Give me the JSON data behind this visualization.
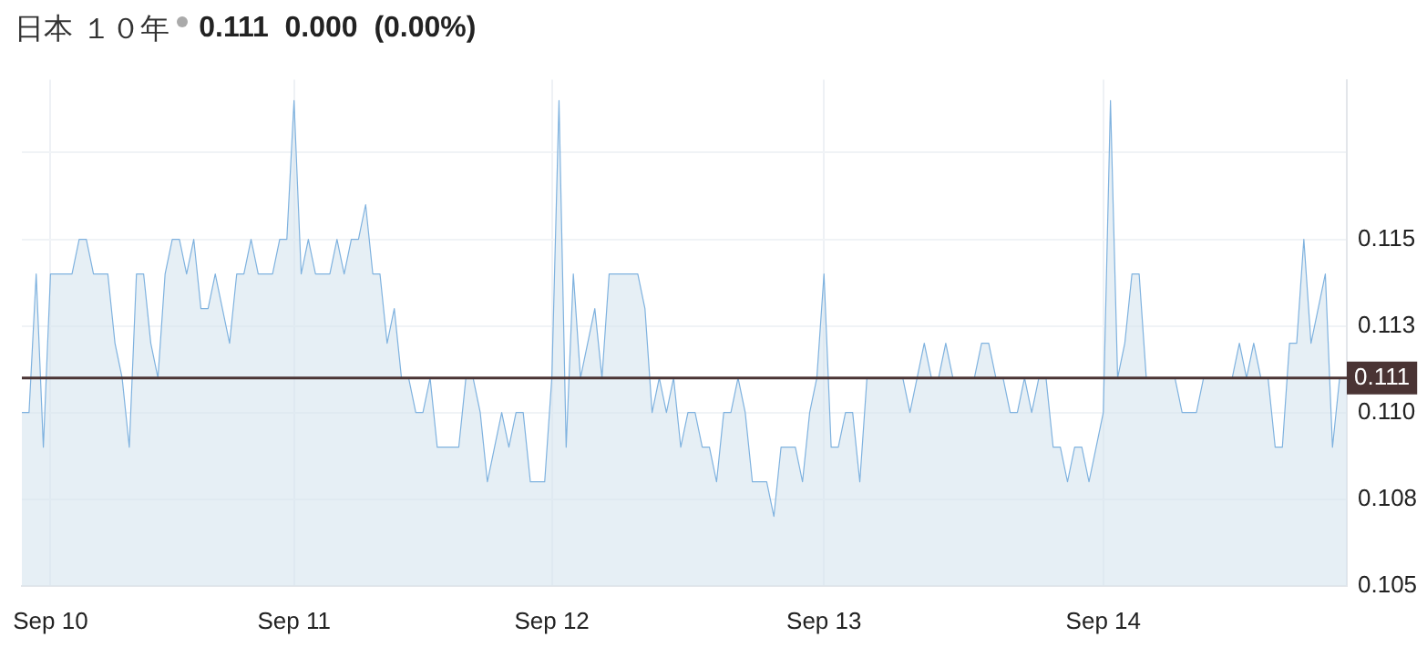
{
  "chart_data": {
    "type": "area",
    "title": "日本 １０年",
    "subtitle": "0.111  0.000  (0.00%)",
    "categories": [
      null,
      null,
      null,
      null,
      "Sep 10",
      null,
      null,
      null,
      null,
      null,
      null,
      null,
      null,
      null,
      null,
      null,
      null,
      null,
      null,
      null,
      null,
      null,
      null,
      null,
      null,
      null,
      null,
      null,
      null,
      null,
      null,
      null,
      null,
      null,
      null,
      null,
      null,
      null,
      "Sep 11",
      null,
      null,
      null,
      null,
      null,
      null,
      null,
      null,
      null,
      null,
      null,
      null,
      null,
      null,
      null,
      null,
      null,
      null,
      null,
      null,
      null,
      null,
      null,
      null,
      null,
      null,
      null,
      null,
      null,
      null,
      null,
      null,
      null,
      null,
      null,
      "Sep 12",
      null,
      null,
      null,
      null,
      null,
      null,
      null,
      null,
      null,
      null,
      null,
      null,
      null,
      null,
      null,
      null,
      null,
      null,
      null,
      null,
      null,
      null,
      null,
      null,
      null,
      null,
      null,
      null,
      null,
      null,
      null,
      null,
      null,
      null,
      null,
      null,
      null,
      "Sep 13",
      null,
      null,
      null,
      null,
      null,
      null,
      null,
      null,
      null,
      null,
      null,
      null,
      null,
      null,
      null,
      null,
      null,
      null,
      null,
      null,
      null,
      null,
      null,
      null,
      null,
      null,
      null,
      null,
      null,
      null,
      null,
      null,
      null,
      null,
      null,
      null,
      null,
      null,
      "Sep 14",
      null,
      null,
      null,
      null,
      null,
      null,
      null,
      null,
      null,
      null,
      null,
      null,
      null,
      null,
      null,
      null,
      null,
      null,
      null,
      null,
      null,
      null,
      null,
      null,
      null,
      null,
      null,
      null,
      null,
      null,
      null,
      null,
      null,
      null
    ],
    "series": [
      {
        "color": "#7fb2df",
        "values": [
          0.11,
          0.11,
          0.114,
          0.109,
          0.114,
          0.114,
          0.114,
          0.114,
          0.115,
          0.115,
          0.114,
          0.114,
          0.114,
          0.112,
          0.111,
          0.109,
          0.114,
          0.114,
          0.112,
          0.111,
          0.114,
          0.115,
          0.115,
          0.114,
          0.115,
          0.113,
          0.113,
          0.114,
          0.113,
          0.112,
          0.114,
          0.114,
          0.115,
          0.114,
          0.114,
          0.114,
          0.115,
          0.115,
          0.119,
          0.114,
          0.115,
          0.114,
          0.114,
          0.114,
          0.115,
          0.114,
          0.115,
          0.115,
          0.116,
          0.114,
          0.114,
          0.112,
          0.113,
          0.111,
          0.111,
          0.11,
          0.11,
          0.111,
          0.109,
          0.109,
          0.109,
          0.109,
          0.111,
          0.111,
          0.11,
          0.108,
          0.109,
          0.11,
          0.109,
          0.11,
          0.11,
          0.108,
          0.108,
          0.108,
          0.111,
          0.119,
          0.109,
          0.114,
          0.111,
          0.112,
          0.113,
          0.111,
          0.114,
          0.114,
          0.114,
          0.114,
          0.114,
          0.113,
          0.11,
          0.111,
          0.11,
          0.111,
          0.109,
          0.11,
          0.11,
          0.109,
          0.109,
          0.108,
          0.11,
          0.11,
          0.111,
          0.11,
          0.108,
          0.108,
          0.108,
          0.107,
          0.109,
          0.109,
          0.109,
          0.108,
          0.11,
          0.111,
          0.114,
          0.109,
          0.109,
          0.11,
          0.11,
          0.108,
          0.111,
          0.111,
          0.111,
          0.111,
          0.111,
          0.111,
          0.11,
          0.111,
          0.112,
          0.111,
          0.111,
          0.112,
          0.111,
          0.111,
          0.111,
          0.111,
          0.112,
          0.112,
          0.111,
          0.111,
          0.11,
          0.11,
          0.111,
          0.11,
          0.111,
          0.111,
          0.109,
          0.109,
          0.108,
          0.109,
          0.109,
          0.108,
          0.109,
          0.11,
          0.119,
          0.111,
          0.112,
          0.114,
          0.114,
          0.111,
          0.111,
          0.111,
          0.111,
          0.111,
          0.11,
          0.11,
          0.11,
          0.111,
          0.111,
          0.111,
          0.111,
          0.111,
          0.112,
          0.111,
          0.112,
          0.111,
          0.111,
          0.109,
          0.109,
          0.112,
          0.112,
          0.115,
          0.112,
          0.113,
          0.114,
          0.109,
          0.111,
          0.111
        ]
      }
    ],
    "ylim": [
      0.105,
      0.1196
    ],
    "yticks": [
      {
        "value": 0.105,
        "label": "0.105"
      },
      {
        "value": 0.1075,
        "label": "0.108"
      },
      {
        "value": 0.11,
        "label": "0.110"
      },
      {
        "value": 0.1125,
        "label": "0.113"
      },
      {
        "value": 0.115,
        "label": "0.115"
      },
      {
        "value": 0.1175,
        "label": null
      }
    ],
    "ref_lines": [
      {
        "axis": "y",
        "value": 0.111,
        "label": "0.111",
        "color": "#4a3434"
      }
    ],
    "grid": true
  }
}
